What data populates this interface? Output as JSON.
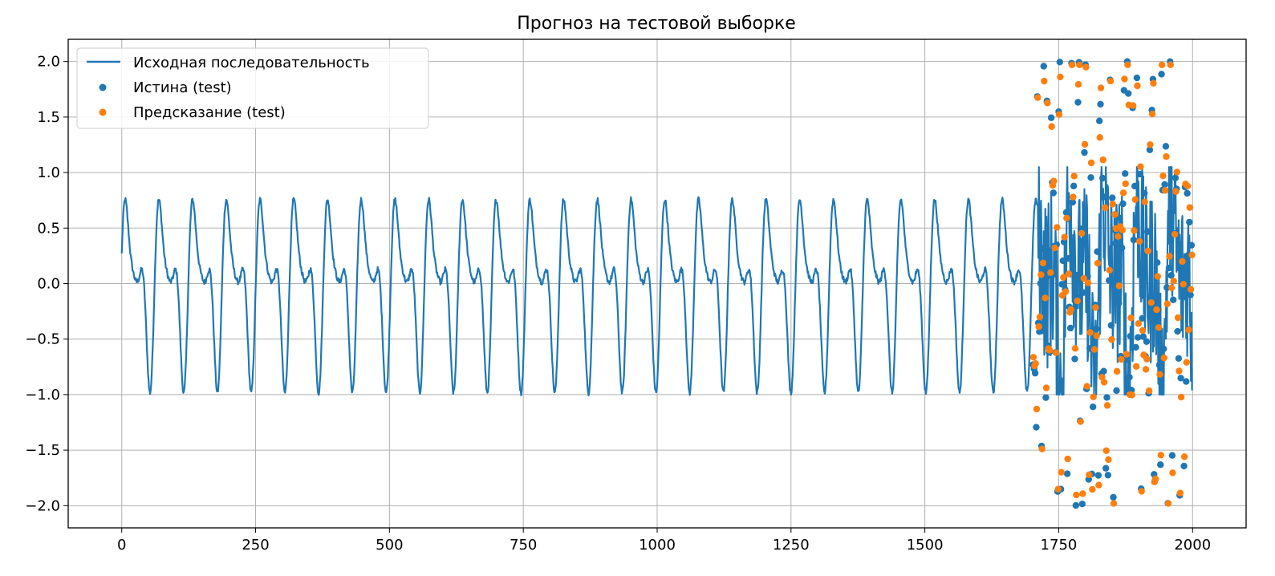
{
  "chart_data": {
    "type": "line",
    "title": "Прогноз на тестовой выборке",
    "xlabel": "",
    "ylabel": "",
    "xlim": [
      -100,
      2100
    ],
    "ylim": [
      -2.2,
      2.2
    ],
    "xticks": [
      0,
      250,
      500,
      750,
      1000,
      1250,
      1500,
      1750,
      2000
    ],
    "xtick_labels": [
      "0",
      "250",
      "500",
      "750",
      "1000",
      "1250",
      "1500",
      "1750",
      "2000"
    ],
    "yticks": [
      2.0,
      1.5,
      1.0,
      0.5,
      0.0,
      -0.5,
      -1.0,
      -1.5,
      -2.0
    ],
    "ytick_labels": [
      "2.0",
      "1.5",
      "1.0",
      "0.5",
      "0.0",
      "−0.5",
      "−1.0",
      "−1.5",
      "−2.0"
    ],
    "grid": true,
    "legend_position": "upper-left",
    "series": [
      {
        "name": "Исходная последовательность",
        "kind": "line",
        "color": "#1f77b4",
        "x_range": [
          0,
          1999
        ],
        "approx_period": 63,
        "amplitude_range": [
          -1.05,
          1.08
        ],
        "note_peaks": [
          0.95,
          0.48,
          0.13
        ]
      },
      {
        "name": "Истина (test)",
        "kind": "scatter",
        "color": "#1f77b4",
        "x_range": [
          1700,
          1999
        ],
        "y_range": [
          -2.0,
          2.02
        ]
      },
      {
        "name": "Предсказание (test)",
        "kind": "scatter",
        "color": "#ff7f0e",
        "x_range": [
          1700,
          1999
        ],
        "y_range": [
          -1.98,
          1.97
        ]
      }
    ]
  }
}
